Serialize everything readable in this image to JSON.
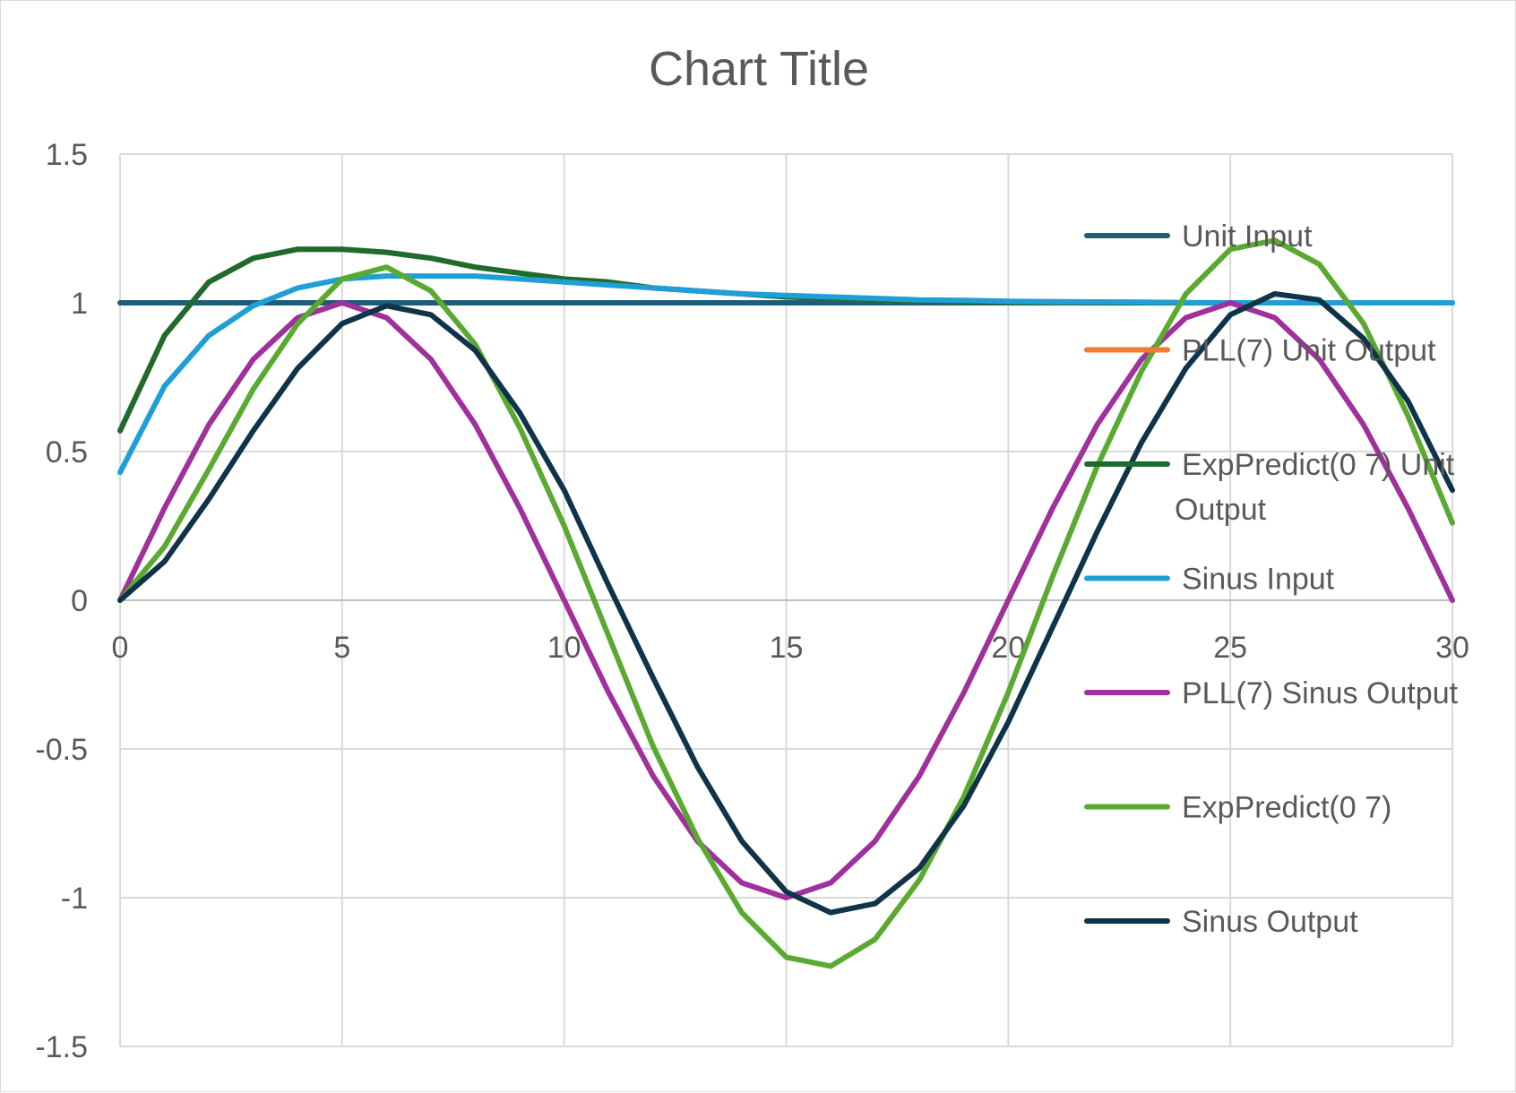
{
  "chart_data": {
    "type": "line",
    "title": "Chart Title",
    "xlabel": "",
    "ylabel": "",
    "xlim": [
      0,
      30
    ],
    "ylim": [
      -1.5,
      1.5
    ],
    "x_ticks": [
      "0",
      "5",
      "10",
      "15",
      "20",
      "25",
      "30"
    ],
    "y_ticks": [
      "-1.5",
      "-1",
      "-0.5",
      "0",
      "0.5",
      "1",
      "1.5"
    ],
    "grid": true,
    "legend_position": "right",
    "x": [
      0,
      1,
      2,
      3,
      4,
      5,
      6,
      7,
      8,
      9,
      10,
      11,
      12,
      13,
      14,
      15,
      16,
      17,
      18,
      19,
      20,
      21,
      22,
      23,
      24,
      25,
      26,
      27,
      28,
      29,
      30
    ],
    "series": [
      {
        "name": "Unit Input",
        "color": "#1f5c7a",
        "values": [
          1,
          1,
          1,
          1,
          1,
          1,
          1,
          1,
          1,
          1,
          1,
          1,
          1,
          1,
          1,
          1,
          1,
          1,
          1,
          1,
          1,
          1,
          1,
          1,
          1,
          1,
          1,
          1,
          1,
          1,
          1
        ]
      },
      {
        "name": "PLL(7) Unit Output",
        "color": "#ed7d31",
        "values": [
          0.57,
          0.89,
          1.07,
          1.15,
          1.18,
          1.18,
          1.17,
          1.15,
          1.12,
          1.1,
          1.08,
          1.07,
          1.05,
          1.04,
          1.03,
          1.02,
          1.015,
          1.01,
          1.005,
          1.003,
          1.002,
          1.001,
          1,
          1,
          1,
          1,
          1,
          1,
          1,
          1,
          1
        ]
      },
      {
        "name": "ExpPredict(0 7) Unit Output",
        "color": "#1e6b2e",
        "values": [
          0.57,
          0.89,
          1.07,
          1.15,
          1.18,
          1.18,
          1.17,
          1.15,
          1.12,
          1.1,
          1.08,
          1.07,
          1.05,
          1.04,
          1.03,
          1.02,
          1.015,
          1.01,
          1.005,
          1.003,
          1.002,
          1.001,
          1,
          1,
          1,
          1,
          1,
          1,
          1,
          1,
          1
        ]
      },
      {
        "name": "Sinus Input",
        "color": "#1f9fd6",
        "values": [
          0.43,
          0.72,
          0.89,
          0.99,
          1.05,
          1.08,
          1.09,
          1.09,
          1.09,
          1.08,
          1.07,
          1.06,
          1.05,
          1.04,
          1.03,
          1.025,
          1.02,
          1.015,
          1.01,
          1.008,
          1.005,
          1.004,
          1.003,
          1.002,
          1.001,
          1,
          1,
          1,
          1,
          1,
          1
        ]
      },
      {
        "name": "PLL(7) Sinus Output",
        "color": "#a0309b",
        "values": [
          0,
          0.31,
          0.59,
          0.81,
          0.95,
          1,
          0.95,
          0.81,
          0.59,
          0.31,
          0,
          -0.31,
          -0.59,
          -0.81,
          -0.95,
          -1,
          -0.95,
          -0.81,
          -0.59,
          -0.31,
          0,
          0.31,
          0.59,
          0.81,
          0.95,
          1,
          0.95,
          0.81,
          0.59,
          0.31,
          0
        ]
      },
      {
        "name": "ExpPredict(0 7)",
        "color": "#5aaa32",
        "values": [
          0,
          0.18,
          0.44,
          0.71,
          0.93,
          1.08,
          1.12,
          1.04,
          0.86,
          0.58,
          0.25,
          -0.12,
          -0.49,
          -0.8,
          -1.05,
          -1.2,
          -1.23,
          -1.14,
          -0.94,
          -0.66,
          -0.31,
          0.08,
          0.45,
          0.77,
          1.03,
          1.18,
          1.21,
          1.13,
          0.93,
          0.62,
          0.26
        ]
      },
      {
        "name": "Sinus Output",
        "color": "#0f3349",
        "values": [
          0,
          0.13,
          0.34,
          0.57,
          0.78,
          0.93,
          0.99,
          0.96,
          0.84,
          0.63,
          0.37,
          0.05,
          -0.26,
          -0.56,
          -0.81,
          -0.98,
          -1.05,
          -1.02,
          -0.9,
          -0.69,
          -0.41,
          -0.09,
          0.23,
          0.53,
          0.78,
          0.96,
          1.03,
          1.01,
          0.88,
          0.67,
          0.37
        ]
      }
    ]
  }
}
